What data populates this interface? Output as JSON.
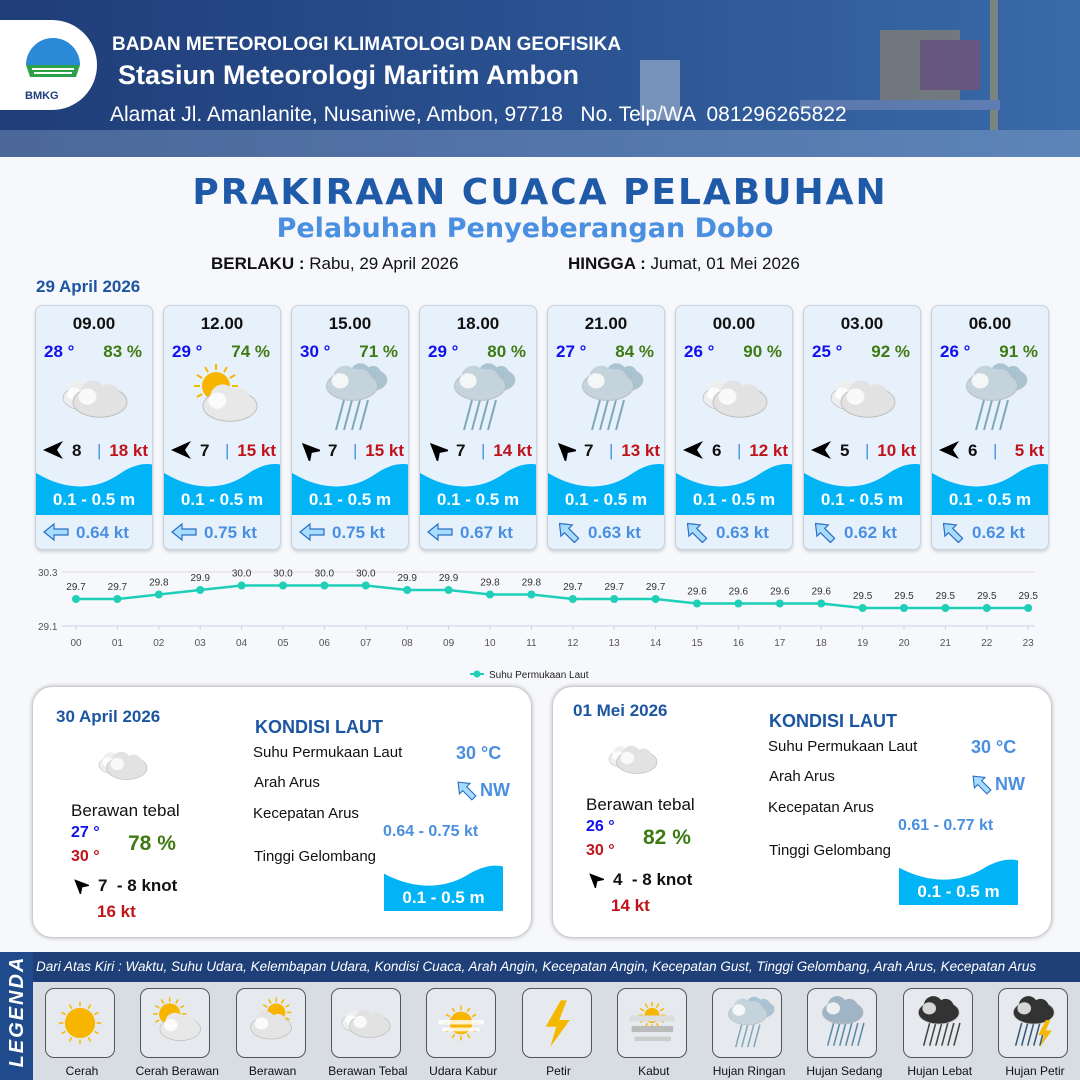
{
  "header": {
    "agency": "BADAN METEOROLOGI KLIMATOLOGI DAN GEOFISIKA",
    "station": "Stasiun Meteorologi Maritim Ambon",
    "address": "Alamat Jl. Amanlanite, Nusaniwe, Ambon, 97718   No. Telp/WA  081296265822",
    "logo_text": "BMKG"
  },
  "title": "PRAKIRAAN CUACA PELABUHAN",
  "subtitle": "Pelabuhan Penyeberangan Dobo",
  "validity": {
    "from_label": "BERLAKU :",
    "from": "Rabu, 29 April 2026",
    "to_label": "HINGGA :",
    "to": "Jumat, 01 Mei 2026"
  },
  "day1_date": "29 April 2026",
  "colors": {
    "wave": "#00b4f5",
    "temp": "#1010ee",
    "humidity": "#3f7a12",
    "gust": "#c0141a",
    "current": "#4a8fe0",
    "chart_line": "#1fcfb8"
  },
  "forecasts": [
    {
      "time": "09.00",
      "temp": "28 °",
      "hum": "83 %",
      "icon": "berawan-tebal",
      "wind_dir": "W",
      "wind": "8",
      "gust": "18 kt",
      "wave": "0.1 - 0.5 m",
      "cur_dir": "W",
      "cur": "0.64 kt"
    },
    {
      "time": "12.00",
      "temp": "29 °",
      "hum": "74 %",
      "icon": "cerah-berawan",
      "wind_dir": "W",
      "wind": "7",
      "gust": "15 kt",
      "wave": "0.1 - 0.5 m",
      "cur_dir": "W",
      "cur": "0.75 kt"
    },
    {
      "time": "15.00",
      "temp": "30 °",
      "hum": "71 %",
      "icon": "hujan-ringan",
      "wind_dir": "NW",
      "wind": "7",
      "gust": "15 kt",
      "wave": "0.1 - 0.5 m",
      "cur_dir": "W",
      "cur": "0.75 kt"
    },
    {
      "time": "18.00",
      "temp": "29 °",
      "hum": "80 %",
      "icon": "hujan-ringan",
      "wind_dir": "NW",
      "wind": "7",
      "gust": "14 kt",
      "wave": "0.1 - 0.5 m",
      "cur_dir": "W",
      "cur": "0.67 kt"
    },
    {
      "time": "21.00",
      "temp": "27 °",
      "hum": "84 %",
      "icon": "hujan-ringan",
      "wind_dir": "NW",
      "wind": "7",
      "gust": "13 kt",
      "wave": "0.1 - 0.5 m",
      "cur_dir": "NW",
      "cur": "0.63 kt"
    },
    {
      "time": "00.00",
      "temp": "26 °",
      "hum": "90 %",
      "icon": "berawan-tebal",
      "wind_dir": "W",
      "wind": "6",
      "gust": "12 kt",
      "wave": "0.1 - 0.5 m",
      "cur_dir": "NW",
      "cur": "0.63 kt"
    },
    {
      "time": "03.00",
      "temp": "25 °",
      "hum": "92 %",
      "icon": "berawan-tebal",
      "wind_dir": "W",
      "wind": "5",
      "gust": "10 kt",
      "wave": "0.1 - 0.5 m",
      "cur_dir": "NW",
      "cur": "0.62 kt"
    },
    {
      "time": "06.00",
      "temp": "26 °",
      "hum": "91 %",
      "icon": "hujan-ringan",
      "wind_dir": "W",
      "wind": "6",
      "gust": "5 kt",
      "wave": "0.1 - 0.5 m",
      "cur_dir": "NW",
      "cur": "0.62 kt"
    }
  ],
  "chart_data": {
    "type": "line",
    "categories": [
      "00",
      "01",
      "02",
      "03",
      "04",
      "05",
      "06",
      "07",
      "08",
      "09",
      "10",
      "11",
      "12",
      "13",
      "14",
      "15",
      "16",
      "17",
      "18",
      "19",
      "20",
      "21",
      "22",
      "23"
    ],
    "series": [
      {
        "name": "Suhu Permukaan Laut",
        "values": [
          29.7,
          29.7,
          29.8,
          29.9,
          30.0,
          30.0,
          30.0,
          30.0,
          29.9,
          29.9,
          29.8,
          29.8,
          29.7,
          29.7,
          29.7,
          29.6,
          29.6,
          29.6,
          29.6,
          29.5,
          29.5,
          29.5,
          29.5,
          29.5
        ]
      }
    ],
    "ylim": [
      29.1,
      30.3
    ],
    "yticks": [
      "30.3",
      "29.1"
    ],
    "legend": "bottom",
    "grid": true
  },
  "days": [
    {
      "date": "30 April 2026",
      "icon": "berawan-tebal",
      "cond": "Berawan tebal",
      "tmin": "27 °",
      "tmax": "30 °",
      "hum": "78 %",
      "wind_dir": "NW",
      "wind": "7  - 8 knot",
      "gust": "16 kt",
      "sea": {
        "title": "KONDISI LAUT",
        "sst_label": "Suhu Permukaan Laut",
        "sst": "30 °C",
        "dir_label": "Arah Arus",
        "dir": "NW",
        "speed_label": "Kecepatan Arus",
        "speed": "0.64 - 0.75 kt",
        "wave_label": "Tinggi Gelombang",
        "wave": "0.1 - 0.5 m"
      }
    },
    {
      "date": "01 Mei 2026",
      "icon": "berawan-tebal",
      "cond": "Berawan tebal",
      "tmin": "26 °",
      "tmax": "30 °",
      "hum": "82 %",
      "wind_dir": "NW",
      "wind": "4  - 8 knot",
      "gust": "14 kt",
      "sea": {
        "title": "KONDISI LAUT",
        "sst_label": "Suhu Permukaan Laut",
        "sst": "30 °C",
        "dir_label": "Arah Arus",
        "dir": "NW",
        "speed_label": "Kecepatan Arus",
        "speed": "0.61 - 0.77 kt",
        "wave_label": "Tinggi Gelombang",
        "wave": "0.1 - 0.5 m"
      }
    }
  ],
  "legend": {
    "side_label": "LEGENDA",
    "description": "Dari Atas Kiri : Waktu, Suhu Udara, Kelembapan Udara, Kondisi Cuaca, Arah Angin, Kecepatan Angin, Kecepatan Gust, Tinggi Gelombang, Arah Arus, Kecepatan Arus",
    "items": [
      {
        "label": "Cerah",
        "icon": "cerah"
      },
      {
        "label": "Cerah Berawan",
        "icon": "cerah-berawan"
      },
      {
        "label": "Berawan",
        "icon": "berawan"
      },
      {
        "label": "Berawan Tebal",
        "icon": "berawan-tebal"
      },
      {
        "label": "Udara Kabur",
        "icon": "udara-kabur"
      },
      {
        "label": "Petir",
        "icon": "petir"
      },
      {
        "label": "Kabut",
        "icon": "kabut"
      },
      {
        "label": "Hujan Ringan",
        "icon": "hujan-ringan"
      },
      {
        "label": "Hujan Sedang",
        "icon": "hujan-sedang"
      },
      {
        "label": "Hujan Lebat",
        "icon": "hujan-lebat"
      },
      {
        "label": "Hujan Petir",
        "icon": "hujan-petir"
      }
    ]
  }
}
